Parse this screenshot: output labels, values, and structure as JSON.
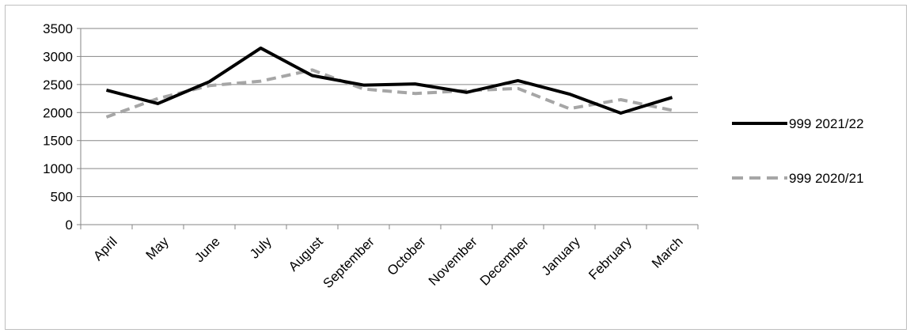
{
  "chart_data": {
    "type": "line",
    "title": "",
    "xlabel": "",
    "ylabel": "",
    "categories": [
      "April",
      "May",
      "June",
      "July",
      "August",
      "September",
      "October",
      "November",
      "December",
      "January",
      "February",
      "March"
    ],
    "ylim": [
      0,
      3500
    ],
    "yticks": [
      0,
      500,
      1000,
      1500,
      2000,
      2500,
      3000,
      3500
    ],
    "grid": true,
    "legend_position": "right",
    "series": [
      {
        "name": "999 2021/22",
        "color": "#000000",
        "style": "solid",
        "values": [
          2400,
          2160,
          2550,
          3150,
          2660,
          2490,
          2510,
          2360,
          2570,
          2330,
          1990,
          2270
        ]
      },
      {
        "name": "999 2020/21",
        "color": "#a6a6a6",
        "style": "dashed",
        "values": [
          1920,
          2250,
          2480,
          2560,
          2760,
          2420,
          2340,
          2390,
          2430,
          2070,
          2230,
          2040
        ]
      }
    ]
  }
}
